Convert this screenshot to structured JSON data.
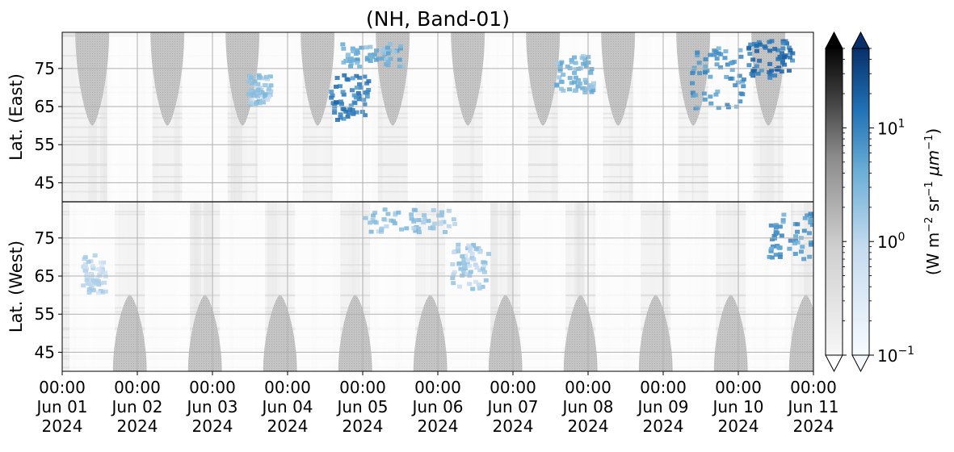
{
  "chart_data": {
    "type": "heatmap",
    "title": "(NH, Band-01)",
    "panels": [
      {
        "name": "east",
        "ylabel": "Lat. (East)",
        "yticks": [
          45,
          55,
          65,
          75
        ],
        "ylim": [
          40,
          84.5
        ],
        "y_inverted": false
      },
      {
        "name": "west",
        "ylabel": "Lat. (West)",
        "yticks": [
          75,
          65,
          55,
          45
        ],
        "ylim": [
          84.5,
          40
        ],
        "y_inverted": true
      }
    ],
    "x": {
      "ticks": [
        {
          "time": "00:00",
          "date": "Jun 01",
          "year": "2024"
        },
        {
          "time": "00:00",
          "date": "Jun 02",
          "year": "2024"
        },
        {
          "time": "00:00",
          "date": "Jun 03",
          "year": "2024"
        },
        {
          "time": "00:00",
          "date": "Jun 04",
          "year": "2024"
        },
        {
          "time": "00:00",
          "date": "Jun 05",
          "year": "2024"
        },
        {
          "time": "00:00",
          "date": "Jun 06",
          "year": "2024"
        },
        {
          "time": "00:00",
          "date": "Jun 07",
          "year": "2024"
        },
        {
          "time": "00:00",
          "date": "Jun 08",
          "year": "2024"
        },
        {
          "time": "00:00",
          "date": "Jun 09",
          "year": "2024"
        },
        {
          "time": "00:00",
          "date": "Jun 10",
          "year": "2024"
        },
        {
          "time": "00:00",
          "date": "Jun 11",
          "year": "2024"
        }
      ],
      "range": [
        "2024-06-01T00:00",
        "2024-06-11T00:00"
      ]
    },
    "grid": true,
    "colorbars": [
      {
        "cmap": "Greys",
        "scale": "log",
        "range": [
          0.1,
          50
        ],
        "extend": "both"
      },
      {
        "cmap": "Blues",
        "scale": "log",
        "range": [
          0.1,
          50
        ],
        "extend": "both",
        "ticks": [
          {
            "value": 0.1,
            "base": "10",
            "exp": "−1"
          },
          {
            "value": 1,
            "base": "10",
            "exp": "0"
          },
          {
            "value": 10,
            "base": "10",
            "exp": "1"
          }
        ],
        "label": {
          "w": "(W m",
          "e1": "−2",
          "sr": " sr",
          "e2": "−1",
          "mu": " μm",
          "e3": "−1",
          "close": ")"
        }
      }
    ],
    "daylight_gaps": {
      "east_days": [
        0.4,
        1.4,
        2.4,
        3.4,
        4.4,
        5.4,
        6.4,
        7.4,
        8.4,
        9.4
      ],
      "west_days": [
        0.9,
        1.9,
        2.9,
        3.9,
        4.9,
        5.9,
        6.9,
        7.9,
        8.9,
        9.9
      ],
      "half_width_days": 0.3,
      "lat_tip": 60
    },
    "blue_clusters": [
      {
        "day": 2.6,
        "lat": 70,
        "panel": "east",
        "value": 1.5,
        "spread_day": 0.15,
        "spread_lat": 4
      },
      {
        "day": 3.8,
        "lat": 68,
        "panel": "east",
        "value": 12,
        "spread_day": 0.25,
        "spread_lat": 6
      },
      {
        "day": 4.1,
        "lat": 79,
        "panel": "east",
        "value": 3,
        "spread_day": 0.4,
        "spread_lat": 3
      },
      {
        "day": 6.8,
        "lat": 74,
        "panel": "east",
        "value": 2.5,
        "spread_day": 0.25,
        "spread_lat": 5
      },
      {
        "day": 8.7,
        "lat": 73,
        "panel": "east",
        "value": 6,
        "spread_day": 0.35,
        "spread_lat": 8
      },
      {
        "day": 9.4,
        "lat": 78,
        "panel": "east",
        "value": 15,
        "spread_day": 0.3,
        "spread_lat": 5
      },
      {
        "day": 9.7,
        "lat": 76,
        "panel": "west",
        "value": 6,
        "spread_day": 0.35,
        "spread_lat": 6
      },
      {
        "day": 5.4,
        "lat": 68,
        "panel": "west",
        "value": 1.2,
        "spread_day": 0.25,
        "spread_lat": 6
      },
      {
        "day": 4.6,
        "lat": 80,
        "panel": "west",
        "value": 1.5,
        "spread_day": 0.6,
        "spread_lat": 3
      },
      {
        "day": 0.4,
        "lat": 66,
        "panel": "west",
        "value": 0.8,
        "spread_day": 0.15,
        "spread_lat": 5
      }
    ]
  }
}
